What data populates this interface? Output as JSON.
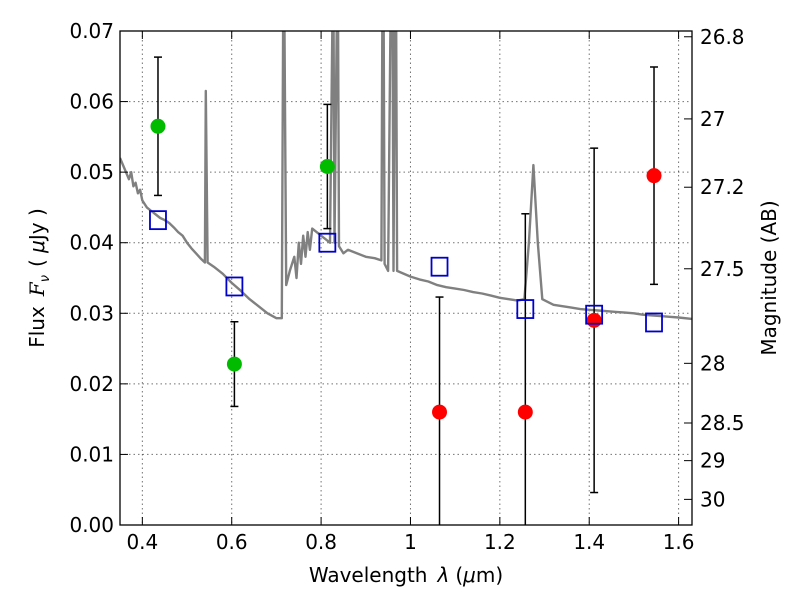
{
  "chart_data": {
    "type": "scatter",
    "x_axis": {
      "label_main": "Wavelength",
      "label_symbol": "λ",
      "label_unit_open": "(",
      "label_unit_mu": "μ",
      "label_unit_rest": "m)",
      "range": [
        0.35,
        1.63
      ],
      "ticks": [
        0.4,
        0.6,
        0.8,
        1.0,
        1.2,
        1.4,
        1.6
      ],
      "tick_labels": [
        "0.4",
        "0.6",
        "0.8",
        "1",
        "1.2",
        "1.4",
        "1.6"
      ]
    },
    "y_axis": {
      "label_main": "Flux",
      "label_symbol": "F",
      "label_sub": "ν",
      "label_unit_open": "( ",
      "label_unit_mu": "μ",
      "label_unit_rest": "Jy )",
      "range": [
        0.0,
        0.07
      ],
      "ticks": [
        0.0,
        0.01,
        0.02,
        0.03,
        0.04,
        0.05,
        0.06,
        0.07
      ],
      "tick_labels": [
        "0.00",
        "0.01",
        "0.02",
        "0.03",
        "0.04",
        "0.05",
        "0.06",
        "0.07"
      ]
    },
    "y2_axis": {
      "label": "Magnitude (AB)",
      "ticks": [
        26.8,
        27,
        27.2,
        27.5,
        28,
        28.5,
        29,
        30
      ],
      "tick_labels": [
        "26.8",
        "27",
        "27.2",
        "27.5",
        "28",
        "28.5",
        "29",
        "30"
      ]
    },
    "grid": true,
    "series": [
      {
        "marker": "circle",
        "color": "#00bb00",
        "points": [
          {
            "x": 0.435,
            "y": 0.0565,
            "err": 0.0098
          },
          {
            "x": 0.606,
            "y": 0.0228,
            "err": 0.006
          },
          {
            "x": 0.814,
            "y": 0.0508,
            "err": 0.0088
          }
        ]
      },
      {
        "marker": "circle",
        "color": "#ff0000",
        "points": [
          {
            "x": 1.065,
            "y": 0.016,
            "err": 0.0163
          },
          {
            "x": 1.257,
            "y": 0.016,
            "err": 0.0281
          },
          {
            "x": 1.411,
            "y": 0.029,
            "err": 0.0244
          },
          {
            "x": 1.545,
            "y": 0.0495,
            "err": 0.0154
          }
        ]
      },
      {
        "marker": "open-square",
        "color": "#0000cc",
        "points": [
          {
            "x": 0.435,
            "y": 0.0432
          },
          {
            "x": 0.606,
            "y": 0.0338
          },
          {
            "x": 0.814,
            "y": 0.04
          },
          {
            "x": 1.065,
            "y": 0.0366
          },
          {
            "x": 1.257,
            "y": 0.0306
          },
          {
            "x": 1.411,
            "y": 0.0298
          },
          {
            "x": 1.545,
            "y": 0.0287
          }
        ]
      }
    ],
    "sed_model": {
      "color": "#808080",
      "points": [
        [
          0.35,
          0.052
        ],
        [
          0.36,
          0.0505
        ],
        [
          0.37,
          0.049
        ],
        [
          0.375,
          0.05
        ],
        [
          0.38,
          0.048
        ],
        [
          0.385,
          0.0485
        ],
        [
          0.39,
          0.047
        ],
        [
          0.395,
          0.0475
        ],
        [
          0.4,
          0.046
        ],
        [
          0.41,
          0.045
        ],
        [
          0.42,
          0.0445
        ],
        [
          0.43,
          0.044
        ],
        [
          0.44,
          0.0435
        ],
        [
          0.45,
          0.0432
        ],
        [
          0.46,
          0.0428
        ],
        [
          0.47,
          0.0422
        ],
        [
          0.48,
          0.0415
        ],
        [
          0.49,
          0.041
        ],
        [
          0.5,
          0.04
        ],
        [
          0.51,
          0.0392
        ],
        [
          0.52,
          0.0385
        ],
        [
          0.53,
          0.0378
        ],
        [
          0.54,
          0.0372
        ],
        [
          0.542,
          0.0615
        ],
        [
          0.546,
          0.0372
        ],
        [
          0.56,
          0.0366
        ],
        [
          0.58,
          0.0356
        ],
        [
          0.6,
          0.0343
        ],
        [
          0.62,
          0.0332
        ],
        [
          0.64,
          0.032
        ],
        [
          0.66,
          0.031
        ],
        [
          0.68,
          0.03
        ],
        [
          0.7,
          0.0293
        ],
        [
          0.712,
          0.0293
        ],
        [
          0.715,
          0.07
        ],
        [
          0.718,
          0.07
        ],
        [
          0.722,
          0.034
        ],
        [
          0.73,
          0.036
        ],
        [
          0.74,
          0.038
        ],
        [
          0.745,
          0.035
        ],
        [
          0.75,
          0.04
        ],
        [
          0.755,
          0.037
        ],
        [
          0.76,
          0.041
        ],
        [
          0.765,
          0.038
        ],
        [
          0.77,
          0.0415
        ],
        [
          0.775,
          0.039
        ],
        [
          0.78,
          0.042
        ],
        [
          0.79,
          0.0415
        ],
        [
          0.8,
          0.041
        ],
        [
          0.81,
          0.0405
        ],
        [
          0.82,
          0.04
        ],
        [
          0.825,
          0.07
        ],
        [
          0.828,
          0.07
        ],
        [
          0.83,
          0.04
        ],
        [
          0.835,
          0.07
        ],
        [
          0.838,
          0.07
        ],
        [
          0.84,
          0.0395
        ],
        [
          0.85,
          0.0385
        ],
        [
          0.86,
          0.039
        ],
        [
          0.88,
          0.0385
        ],
        [
          0.9,
          0.038
        ],
        [
          0.92,
          0.0378
        ],
        [
          0.935,
          0.0375
        ],
        [
          0.937,
          0.07
        ],
        [
          0.94,
          0.07
        ],
        [
          0.942,
          0.037
        ],
        [
          0.95,
          0.036
        ],
        [
          0.955,
          0.07
        ],
        [
          0.96,
          0.07
        ],
        [
          0.962,
          0.036
        ],
        [
          0.965,
          0.07
        ],
        [
          0.968,
          0.07
        ],
        [
          0.97,
          0.036
        ],
        [
          1.0,
          0.0352
        ],
        [
          1.02,
          0.0348
        ],
        [
          1.04,
          0.0345
        ],
        [
          1.06,
          0.034
        ],
        [
          1.08,
          0.0337
        ],
        [
          1.1,
          0.0335
        ],
        [
          1.12,
          0.0333
        ],
        [
          1.14,
          0.033
        ],
        [
          1.16,
          0.0328
        ],
        [
          1.18,
          0.0325
        ],
        [
          1.2,
          0.0322
        ],
        [
          1.22,
          0.032
        ],
        [
          1.24,
          0.0318
        ],
        [
          1.255,
          0.032
        ],
        [
          1.265,
          0.04
        ],
        [
          1.275,
          0.051
        ],
        [
          1.285,
          0.04
        ],
        [
          1.295,
          0.032
        ],
        [
          1.32,
          0.0312
        ],
        [
          1.34,
          0.031
        ],
        [
          1.36,
          0.0308
        ],
        [
          1.38,
          0.0306
        ],
        [
          1.4,
          0.0305
        ],
        [
          1.42,
          0.0304
        ],
        [
          1.44,
          0.0303
        ],
        [
          1.46,
          0.0302
        ],
        [
          1.48,
          0.0301
        ],
        [
          1.5,
          0.03
        ],
        [
          1.52,
          0.0298
        ],
        [
          1.54,
          0.0297
        ],
        [
          1.56,
          0.0296
        ],
        [
          1.58,
          0.0295
        ],
        [
          1.6,
          0.0294
        ],
        [
          1.63,
          0.0292
        ]
      ]
    }
  }
}
